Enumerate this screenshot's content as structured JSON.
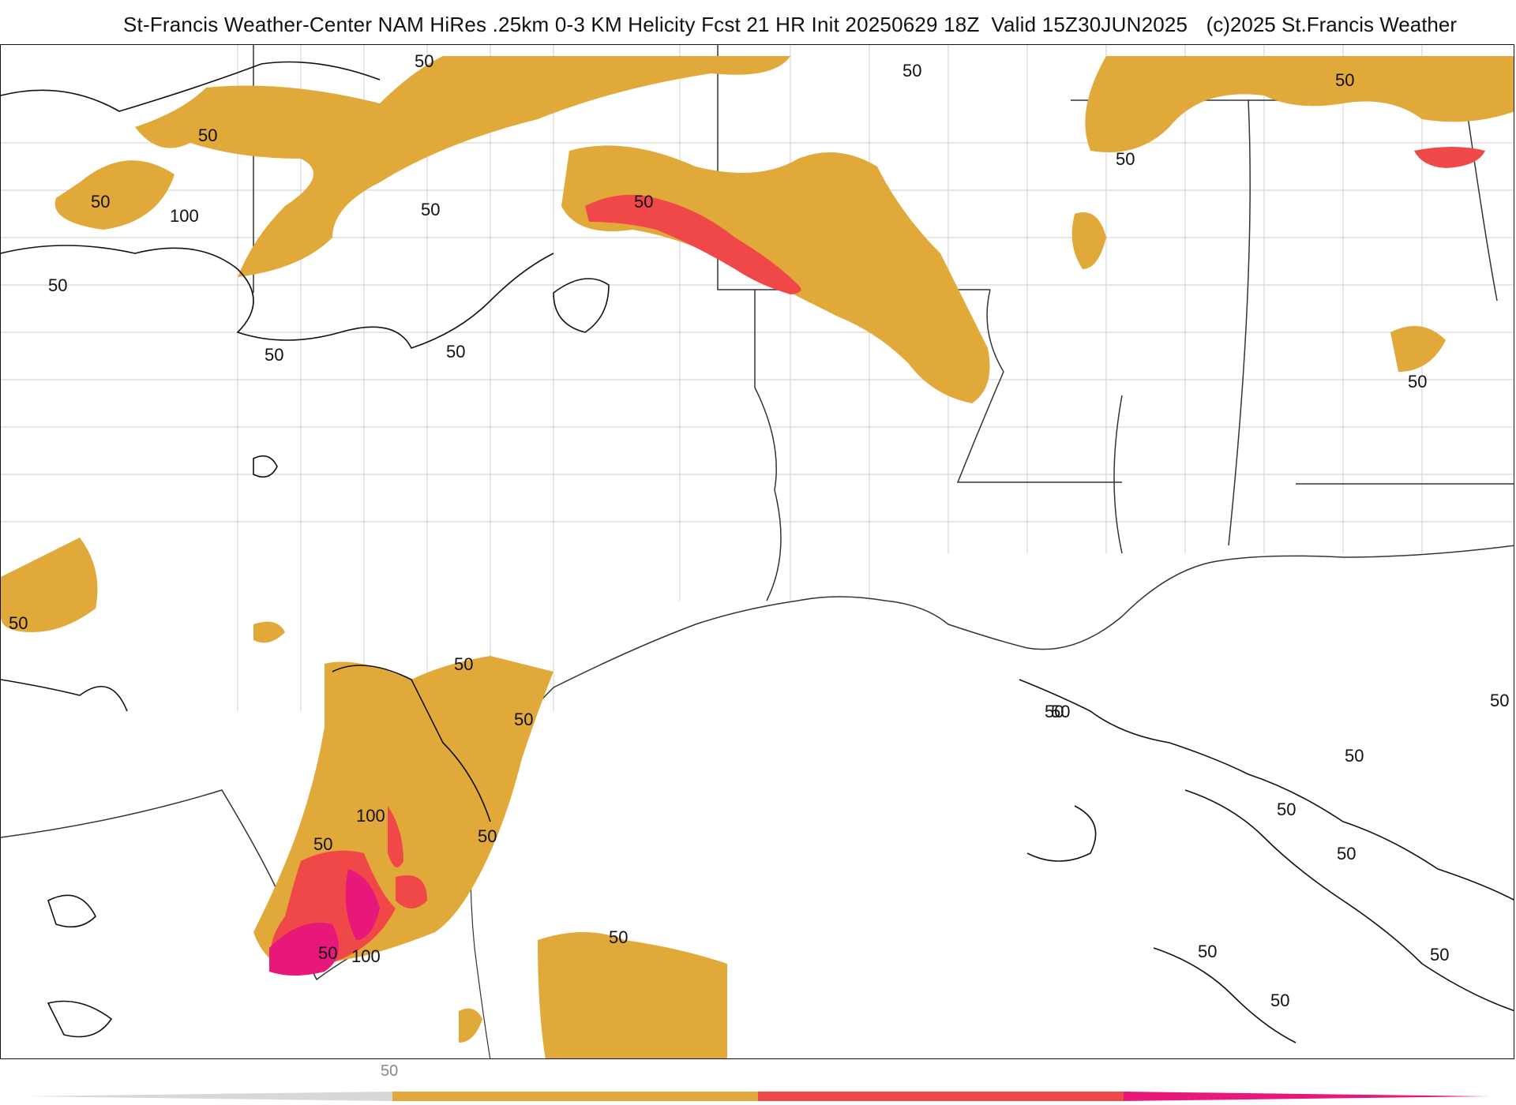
{
  "header": {
    "title": "St-Francis Weather-Center NAM HiRes .25km 0-3 KM Helicity Fcst 21 HR Init 20250629 18Z  Valid 15Z30JUN2025",
    "copyright": "(c)2025 St.Francis Weather"
  },
  "legend": {
    "tick_labels": [
      "50"
    ],
    "bands": [
      {
        "range": "below 50",
        "color": "#d8d8d8"
      },
      {
        "range": "50-100",
        "color": "#e0a93a"
      },
      {
        "range": "100-150",
        "color": "#f04848"
      },
      {
        "range": "150+",
        "color": "#e8187a"
      }
    ]
  },
  "map": {
    "contour_labels": [
      "50",
      "50",
      "50",
      "100",
      "50",
      "50",
      "50",
      "50",
      "50",
      "50",
      "50",
      "50",
      "50",
      "50",
      "50",
      "50",
      "50",
      "100",
      "50",
      "50",
      "50",
      "100",
      "50",
      "50",
      "50",
      "50",
      "50",
      "50",
      "50",
      "50",
      "50"
    ]
  },
  "colors": {
    "gold": "#e0a93a",
    "red": "#f04848",
    "magenta": "#e8187a",
    "border": "#333333",
    "county": "#c8c8c8"
  }
}
